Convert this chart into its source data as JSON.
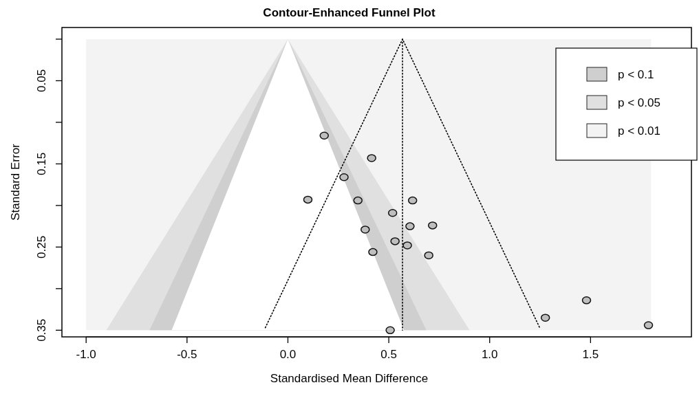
{
  "chart_data": {
    "type": "scatter",
    "title": "Contour-Enhanced Funnel Plot",
    "xlabel": "Standardised Mean Difference",
    "ylabel": "Standard Error",
    "xlim": [
      -1.12,
      2.0
    ],
    "xticks": [
      {
        "value": -1,
        "label": "-1.0"
      },
      {
        "value": -0.5,
        "label": "-0.5"
      },
      {
        "value": 0,
        "label": "0.0"
      },
      {
        "value": 0.5,
        "label": "0.5"
      },
      {
        "value": 1,
        "label": "1.0"
      },
      {
        "value": 1.5,
        "label": "1.5"
      }
    ],
    "ylim": [
      0.358,
      -0.014
    ],
    "yticks": [
      {
        "value": 0,
        "label": null
      },
      0.05,
      {
        "value": 0.1,
        "label": null
      },
      0.15,
      {
        "value": 0.2,
        "label": null
      },
      0.25,
      {
        "value": 0.3,
        "label": null
      },
      0.35
    ],
    "legend": "top right",
    "grid": false,
    "series": [
      {
        "type": "area",
        "color": "#ffffff",
        "x": [
          -0.576,
          0,
          0.576
        ],
        "values": [
          0.35,
          0,
          0.35
        ]
      },
      {
        "type": "area",
        "name": "p < 0.1",
        "color": "#cfcfcf",
        "x": [
          -0.686,
          0,
          0.686
        ],
        "values": [
          0.35,
          0,
          0.35
        ]
      },
      {
        "type": "area",
        "name": "p < 0.05",
        "color": "#e0e0e0",
        "x": [
          -0.9,
          0,
          0.9
        ],
        "values": [
          0.35,
          0,
          0.35
        ]
      },
      {
        "type": "area",
        "name": "p < 0.01",
        "color": "#f2f3f2",
        "x": [
          -1,
          -1,
          1.8,
          1.8
        ],
        "values": [
          0.35,
          0,
          0,
          0.35
        ]
      },
      {
        "type": "line",
        "color": "#000000",
        "line_style": "dotted",
        "x": [
          -0.112,
          0.568,
          1.248
        ],
        "values": [
          0.347,
          0,
          0.347
        ]
      },
      {
        "type": "line",
        "color": "#000000",
        "line_style": "dotted",
        "x": [
          0.568,
          0.568
        ],
        "values": [
          0,
          0.35
        ]
      },
      {
        "color": "#bebebe",
        "marker": "circle",
        "x": [
          0.18,
          0.415,
          0.278,
          0.099,
          0.347,
          0.618,
          0.519,
          0.605,
          0.717,
          0.383,
          0.531,
          0.592,
          0.421,
          0.698,
          1.48,
          1.276,
          1.787,
          0.507
        ],
        "values": [
          0.116,
          0.143,
          0.166,
          0.193,
          0.194,
          0.194,
          0.209,
          0.225,
          0.224,
          0.229,
          0.243,
          0.248,
          0.256,
          0.26,
          0.314,
          0.335,
          0.344,
          0.35
        ]
      }
    ]
  }
}
